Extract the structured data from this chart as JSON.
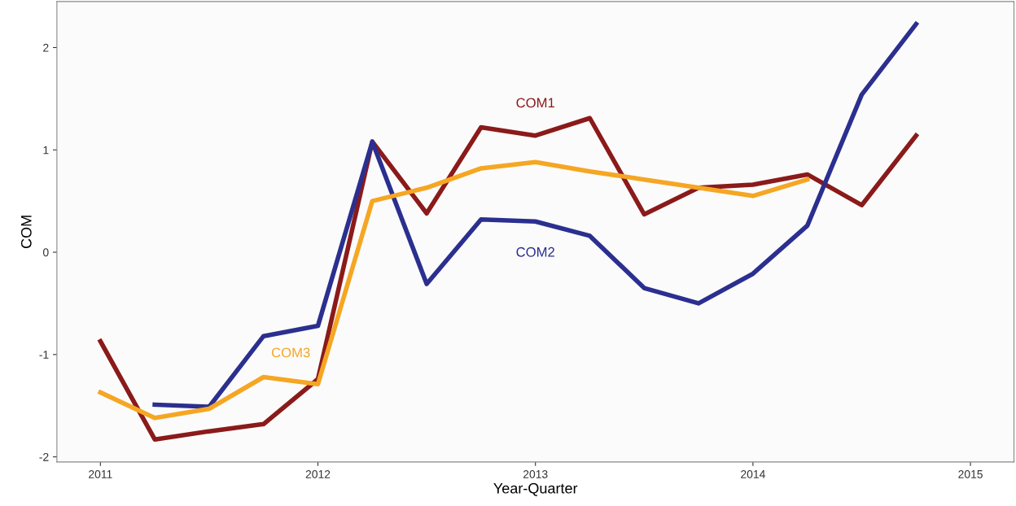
{
  "chart_data": {
    "type": "line",
    "xlabel": "Year-Quarter",
    "ylabel": "COM",
    "x": [
      2011.0,
      2011.25,
      2011.5,
      2011.75,
      2012.0,
      2012.25,
      2012.5,
      2012.75,
      2013.0,
      2013.25,
      2013.5,
      2013.75,
      2014.0,
      2014.25,
      2014.5,
      2014.75
    ],
    "series": [
      {
        "name": "COM1",
        "color": "#8b1a1a",
        "values": [
          -0.87,
          -1.83,
          -1.75,
          -1.68,
          -1.24,
          1.08,
          0.38,
          1.22,
          1.14,
          1.31,
          0.37,
          0.63,
          0.66,
          0.76,
          0.46,
          1.14
        ]
      },
      {
        "name": "COM2",
        "color": "#2b2f8f",
        "values": [
          null,
          -1.49,
          -1.51,
          -0.82,
          -0.72,
          1.08,
          -0.31,
          0.32,
          0.3,
          0.16,
          -0.35,
          -0.5,
          -0.21,
          0.26,
          1.54,
          2.23
        ]
      },
      {
        "name": "COM3",
        "color": "#f5a623",
        "values": [
          -1.37,
          -1.62,
          -1.53,
          -1.22,
          -1.29,
          0.5,
          0.63,
          0.82,
          0.88,
          0.79,
          0.71,
          0.63,
          0.55,
          0.71,
          null,
          null
        ]
      }
    ],
    "xlim": [
      2010.8,
      2015.2
    ],
    "xticks": [
      2011,
      2012,
      2013,
      2014,
      2015
    ],
    "ylim": [
      -2.05,
      2.45
    ],
    "yticks": [
      -2,
      -1,
      0,
      1,
      2
    ],
    "grid": false,
    "marker": "none",
    "line_style": "solid"
  }
}
